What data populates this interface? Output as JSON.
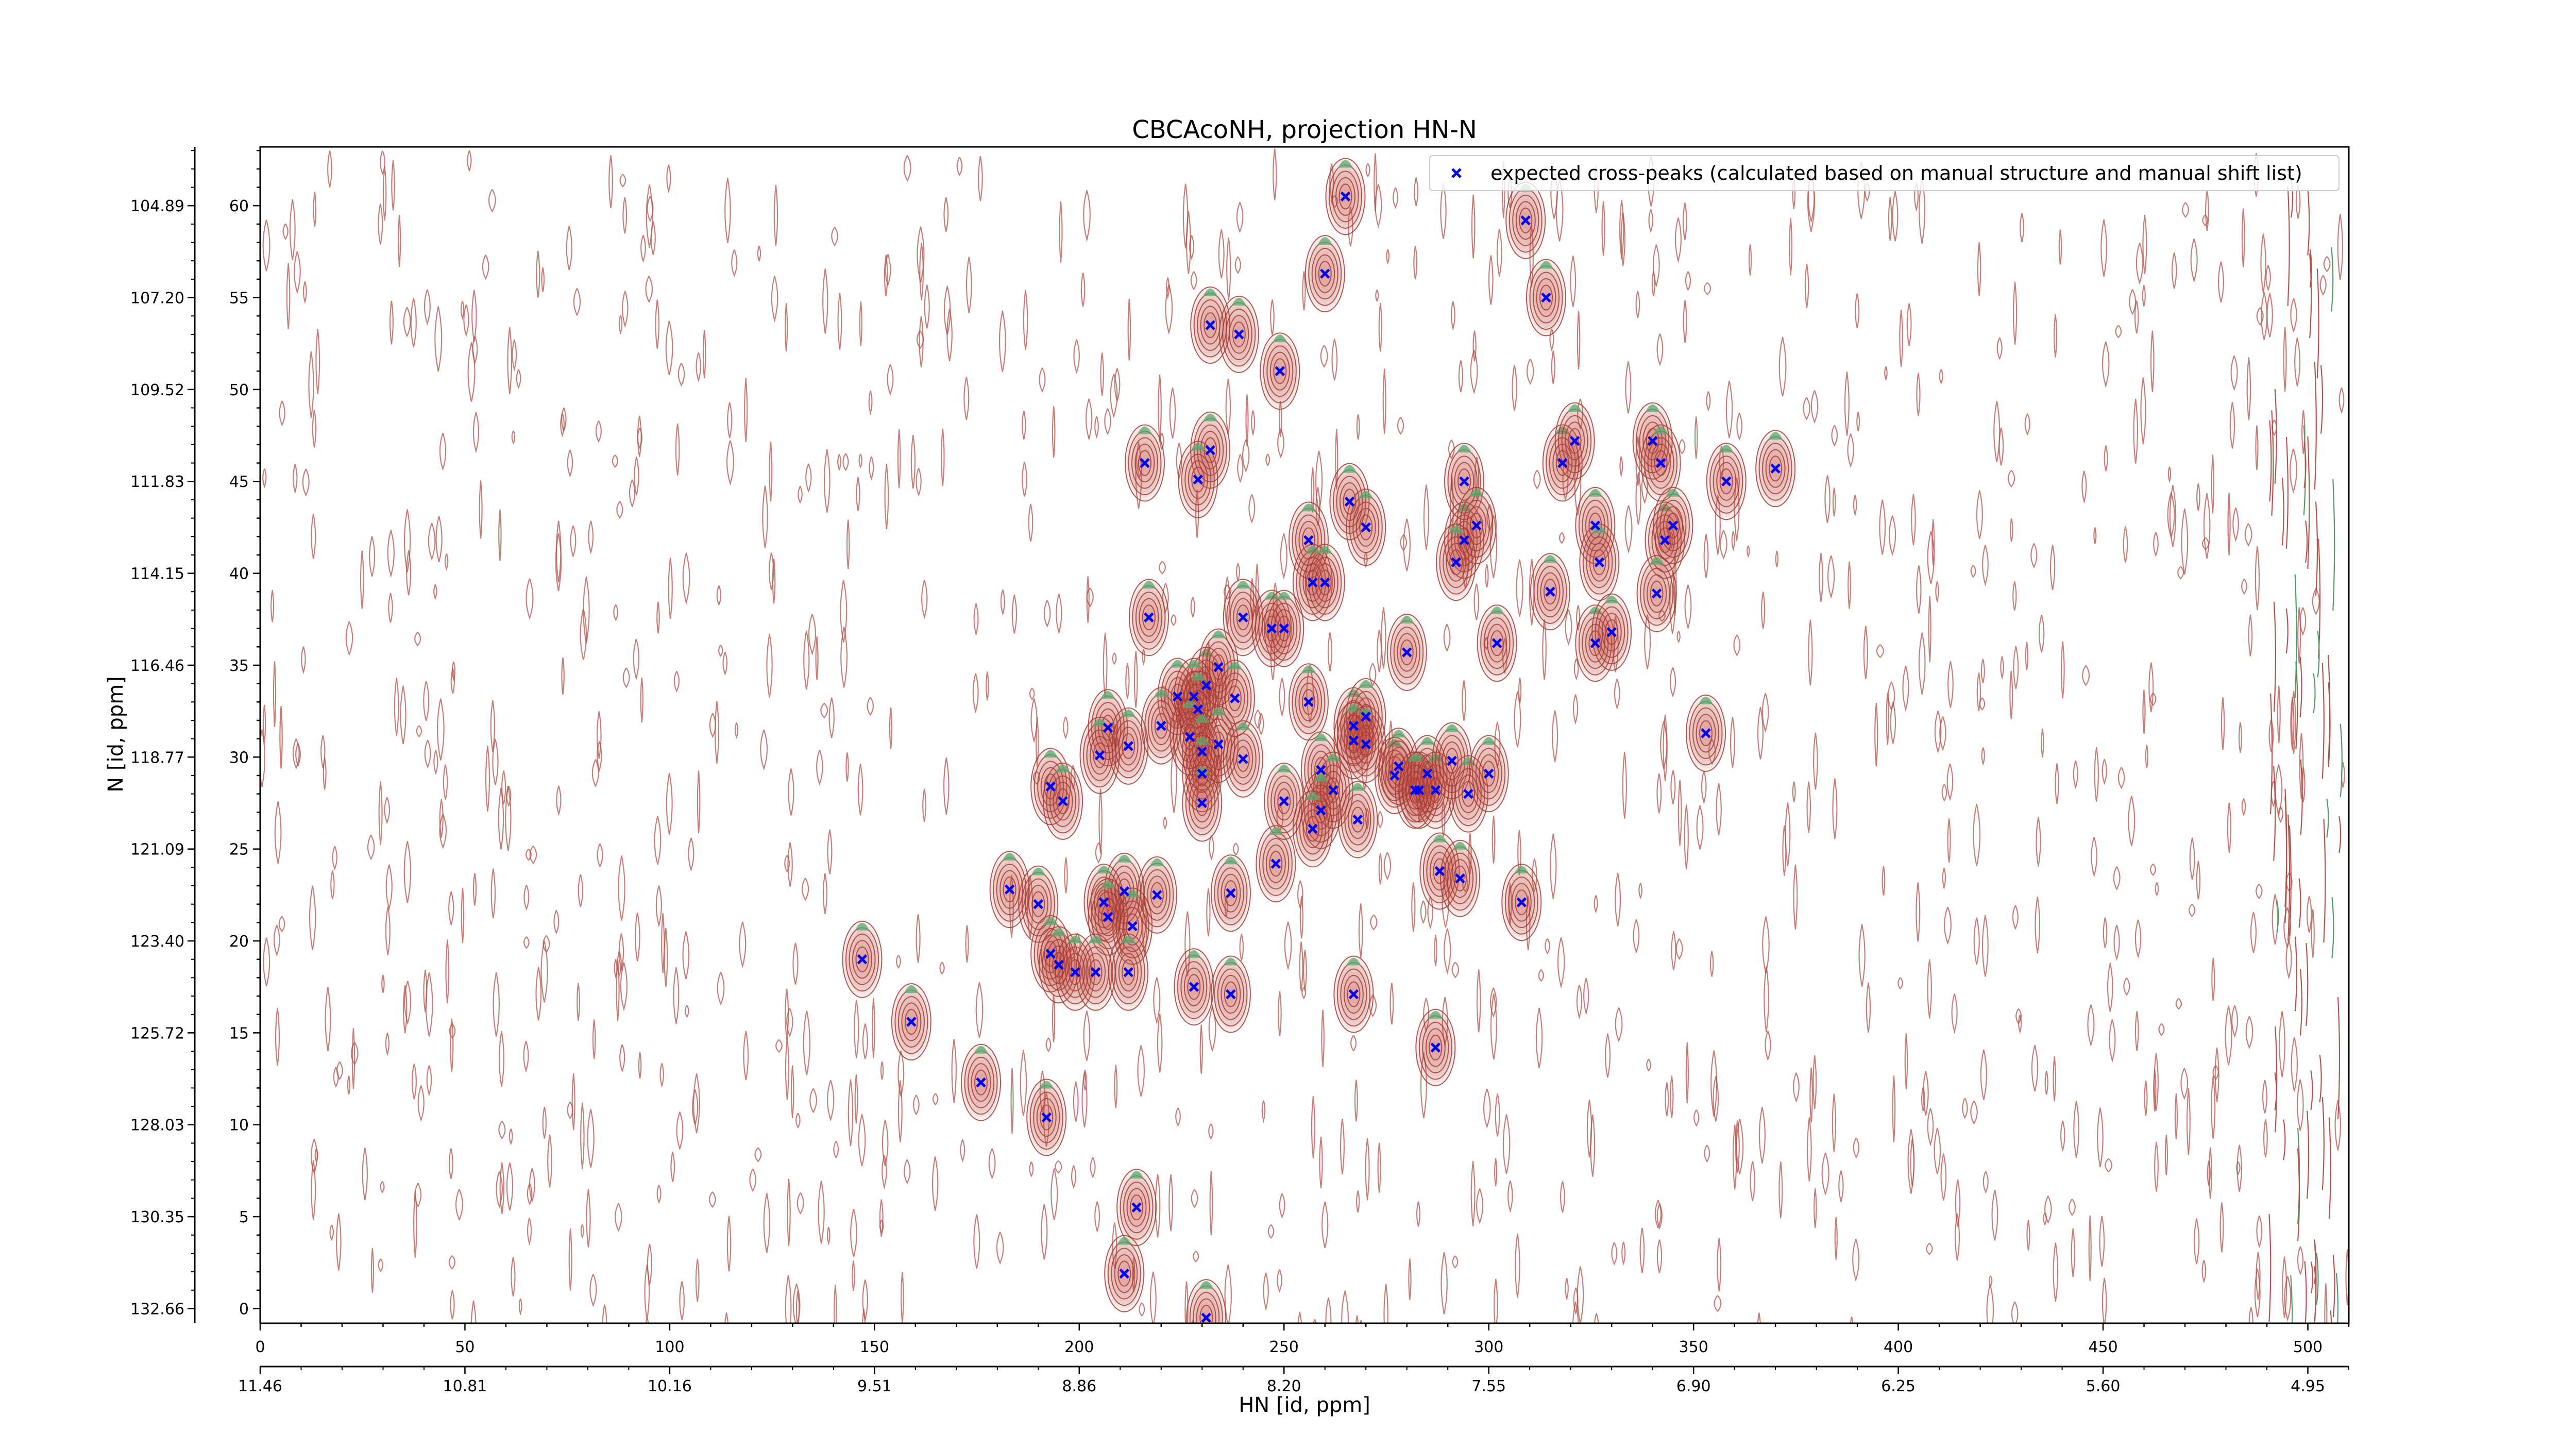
{
  "chart_data": {
    "type": "scatter",
    "title": "CBCAcoNH, projection HN-N",
    "xlabel": "HN [id, ppm]",
    "ylabel": "N [id, ppm]",
    "x_index_range": [
      0,
      510
    ],
    "y_index_range": [
      -0.8,
      63.2
    ],
    "x_index_ticks": [
      0,
      50,
      100,
      150,
      200,
      250,
      300,
      350,
      400,
      450,
      500
    ],
    "x_ppm_ticks": [
      {
        "at": 0,
        "label": "11.46"
      },
      {
        "at": 50,
        "label": "10.81"
      },
      {
        "at": 100,
        "label": "10.16"
      },
      {
        "at": 150,
        "label": "9.51"
      },
      {
        "at": 200,
        "label": "8.86"
      },
      {
        "at": 250,
        "label": "8.20"
      },
      {
        "at": 300,
        "label": "7.55"
      },
      {
        "at": 350,
        "label": "6.90"
      },
      {
        "at": 400,
        "label": "6.25"
      },
      {
        "at": 450,
        "label": "5.60"
      },
      {
        "at": 500,
        "label": "4.95"
      }
    ],
    "y_index_ticks": [
      0,
      5,
      10,
      15,
      20,
      25,
      30,
      35,
      40,
      45,
      50,
      55,
      60
    ],
    "y_ppm_ticks": [
      {
        "at": 60,
        "label": "104.89"
      },
      {
        "at": 55,
        "label": "107.20"
      },
      {
        "at": 50,
        "label": "109.52"
      },
      {
        "at": 45,
        "label": "111.83"
      },
      {
        "at": 40,
        "label": "114.15"
      },
      {
        "at": 35,
        "label": "116.46"
      },
      {
        "at": 30,
        "label": "118.77"
      },
      {
        "at": 25,
        "label": "121.09"
      },
      {
        "at": 20,
        "label": "123.40"
      },
      {
        "at": 15,
        "label": "125.72"
      },
      {
        "at": 10,
        "label": "128.03"
      },
      {
        "at": 5,
        "label": "130.35"
      },
      {
        "at": 0,
        "label": "132.66"
      }
    ],
    "grid": false,
    "legend_position": "top-right",
    "series": [
      {
        "name": "expected cross-peaks (calculated based on manual structure and manual shift list)",
        "color": "#0000ff",
        "marker": "x",
        "points": [
          [
            265,
            60.5
          ],
          [
            309,
            59.2
          ],
          [
            260,
            56.3
          ],
          [
            314,
            55
          ],
          [
            232,
            53.5
          ],
          [
            239,
            53
          ],
          [
            249,
            51
          ],
          [
            232,
            46.7
          ],
          [
            229,
            45.1
          ],
          [
            216,
            46
          ],
          [
            294,
            45
          ],
          [
            318,
            46
          ],
          [
            321,
            47.2
          ],
          [
            340,
            47.2
          ],
          [
            342,
            46
          ],
          [
            358,
            45
          ],
          [
            370,
            45.7
          ],
          [
            266,
            43.9
          ],
          [
            270,
            42.5
          ],
          [
            256,
            41.8
          ],
          [
            294,
            41.8
          ],
          [
            297,
            42.6
          ],
          [
            292,
            40.6
          ],
          [
            326,
            42.6
          ],
          [
            327,
            40.6
          ],
          [
            343,
            41.8
          ],
          [
            345,
            42.6
          ],
          [
            341,
            38.9
          ],
          [
            257,
            39.5
          ],
          [
            260,
            39.5
          ],
          [
            315,
            39
          ],
          [
            217,
            37.6
          ],
          [
            240,
            37.6
          ],
          [
            247,
            37
          ],
          [
            250,
            37
          ],
          [
            280,
            35.7
          ],
          [
            302,
            36.2
          ],
          [
            326,
            36.2
          ],
          [
            330,
            36.8
          ],
          [
            224,
            33.3
          ],
          [
            231,
            33.9
          ],
          [
            234,
            34.9
          ],
          [
            228,
            33.3
          ],
          [
            229,
            32.6
          ],
          [
            238,
            33.2
          ],
          [
            207,
            31.6
          ],
          [
            227,
            31.1
          ],
          [
            234,
            30.7
          ],
          [
            212,
            30.6
          ],
          [
            220,
            31.7
          ],
          [
            230,
            30.3
          ],
          [
            256,
            33
          ],
          [
            267,
            31.7
          ],
          [
            270,
            32.2
          ],
          [
            267,
            30.9
          ],
          [
            270,
            30.7
          ],
          [
            353,
            31.3
          ],
          [
            205,
            30.1
          ],
          [
            193,
            28.4
          ],
          [
            196,
            27.6
          ],
          [
            230,
            29.1
          ],
          [
            240,
            29.9
          ],
          [
            259,
            29.3
          ],
          [
            262,
            28.2
          ],
          [
            230,
            27.5
          ],
          [
            250,
            27.6
          ],
          [
            259,
            27.1
          ],
          [
            257,
            26.1
          ],
          [
            268,
            26.6
          ],
          [
            283,
            28.2
          ],
          [
            277,
            29
          ],
          [
            278,
            29.5
          ],
          [
            285,
            29.1
          ],
          [
            282,
            28.2
          ],
          [
            287,
            28.2
          ],
          [
            291,
            29.8
          ],
          [
            295,
            28
          ],
          [
            300,
            29.1
          ],
          [
            183,
            22.8
          ],
          [
            190,
            22
          ],
          [
            211,
            22.7
          ],
          [
            219,
            22.5
          ],
          [
            237,
            22.6
          ],
          [
            206,
            22.1
          ],
          [
            207,
            21.3
          ],
          [
            213,
            20.8
          ],
          [
            248,
            24.2
          ],
          [
            288,
            23.8
          ],
          [
            293,
            23.4
          ],
          [
            308,
            22.1
          ],
          [
            147,
            19
          ],
          [
            193,
            19.3
          ],
          [
            195,
            18.7
          ],
          [
            199,
            18.3
          ],
          [
            204,
            18.3
          ],
          [
            212,
            18.3
          ],
          [
            228,
            17.5
          ],
          [
            237,
            17.1
          ],
          [
            267,
            17.1
          ],
          [
            159,
            15.6
          ],
          [
            287,
            14.2
          ],
          [
            176,
            12.3
          ],
          [
            192,
            10.4
          ],
          [
            214,
            5.5
          ],
          [
            211,
            1.9
          ],
          [
            231,
            -0.5
          ]
        ]
      }
    ]
  }
}
